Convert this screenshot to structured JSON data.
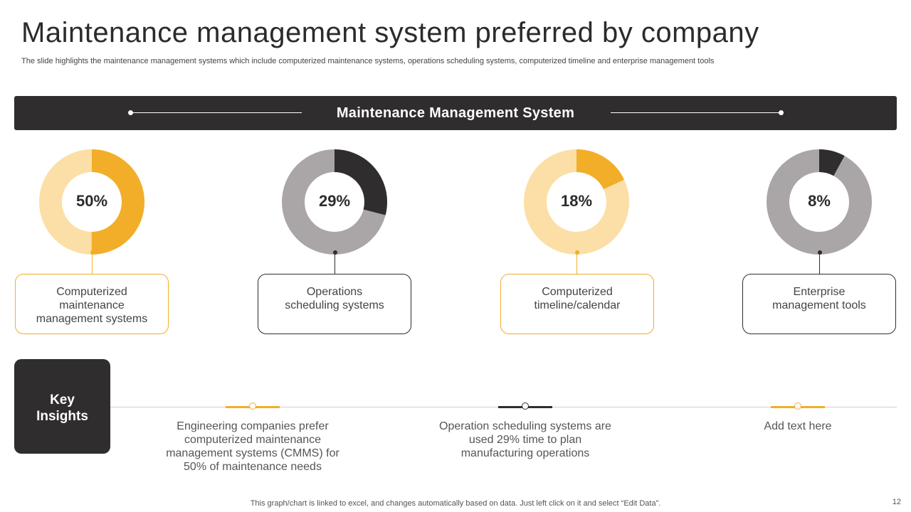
{
  "slide": {
    "title": "Maintenance management system preferred by company",
    "subtitle": "The slide highlights the maintenance management systems which include computerized maintenance systems, operations scheduling systems, computerized timeline and enterprise management tools",
    "banner_title": "Maintenance Management System",
    "footer": "This graph/chart is linked to excel,  and changes automatically based on data. Just left click on it and select “Edit Data”.",
    "page_number": "12"
  },
  "chart_data": {
    "type": "pie",
    "donuts": [
      {
        "label": "50%",
        "value": 50,
        "card_lines": [
          "Computerized",
          "maintenance",
          "management systems"
        ],
        "accent": "#f2ae29",
        "track": "#fbdfa6"
      },
      {
        "label": "29%",
        "value": 29,
        "card_lines": [
          "Operations",
          "scheduling systems"
        ],
        "accent": "#2f2d2e",
        "track": "#aaa6a7"
      },
      {
        "label": "18%",
        "value": 18,
        "card_lines": [
          "Computerized",
          "timeline/calendar"
        ],
        "accent": "#f2ae29",
        "track": "#fbdfa6"
      },
      {
        "label": "8%",
        "value": 8,
        "card_lines": [
          "Enterprise",
          "management tools"
        ],
        "accent": "#2f2d2e",
        "track": "#aaa6a7"
      }
    ]
  },
  "insights": {
    "key_label_line1": "Key",
    "key_label_line2": "Insights",
    "items": [
      {
        "lines": [
          "Engineering companies prefer",
          "computerized maintenance",
          "management systems (CMMS) for",
          "50% of maintenance needs"
        ],
        "color": "#f2ae29"
      },
      {
        "lines": [
          "Operation scheduling systems are",
          "used 29% time to plan",
          "manufacturing operations"
        ],
        "color": "#2f2d2e"
      },
      {
        "lines": [
          "Add text here"
        ],
        "color": "#f2ae29"
      }
    ]
  }
}
